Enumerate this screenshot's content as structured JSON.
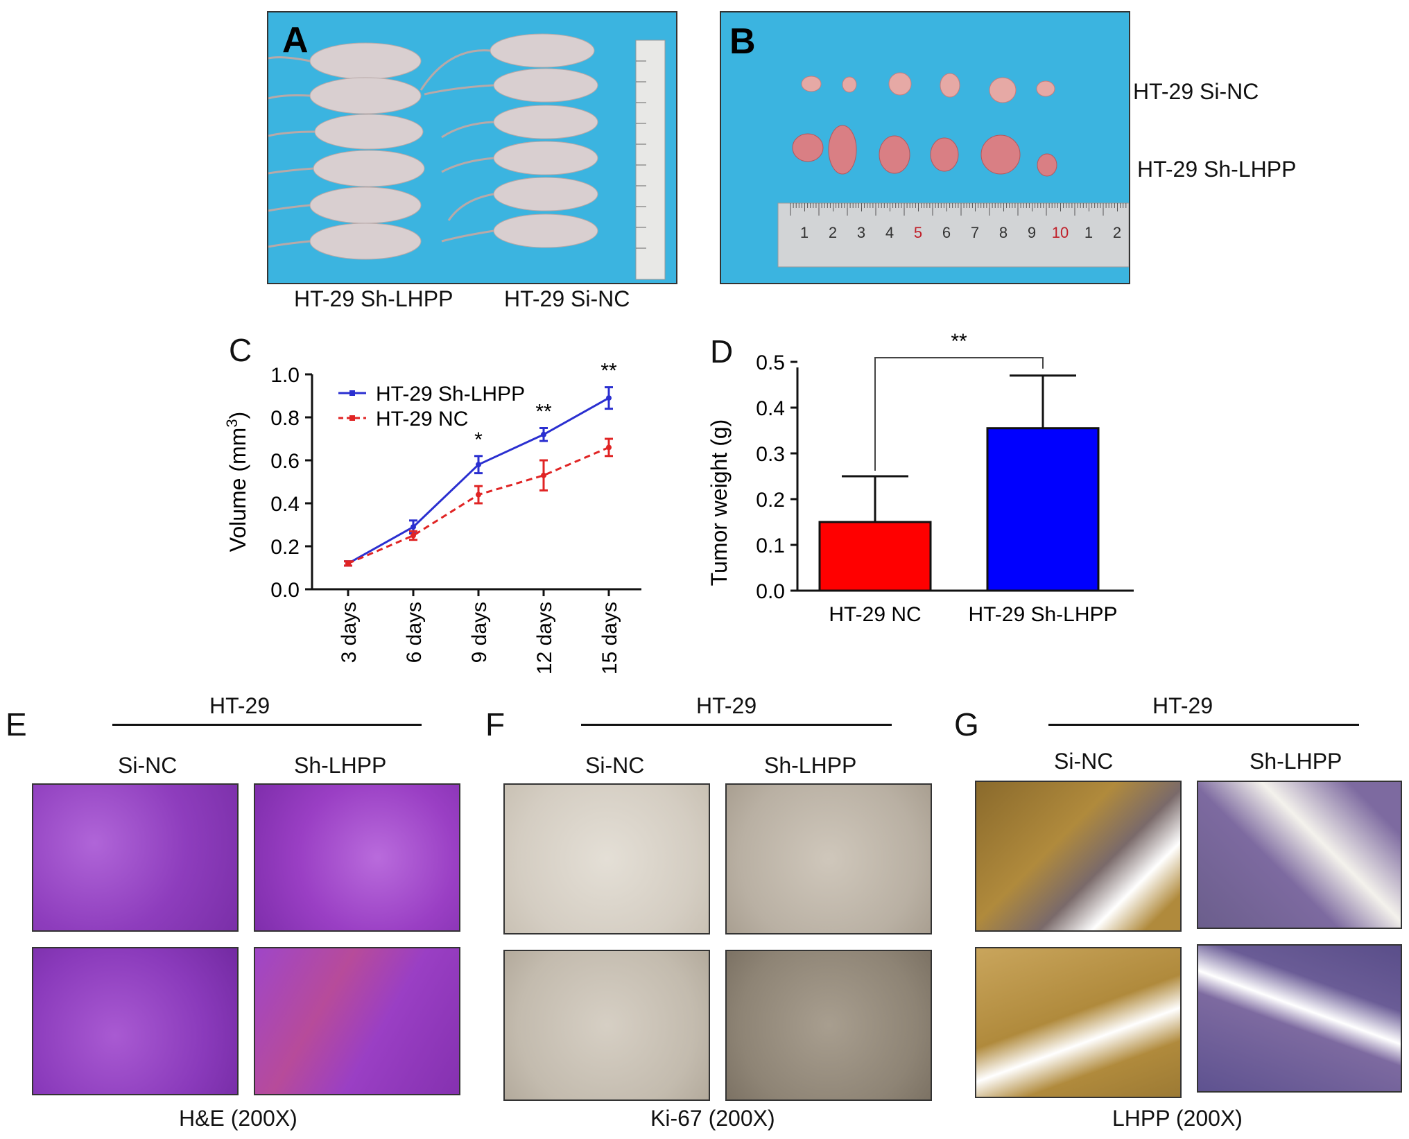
{
  "panelA": {
    "letter": "A",
    "label_left": "HT-29 Sh-LHPP",
    "label_right": "HT-29 Si-NC"
  },
  "panelB": {
    "letter": "B",
    "row1_label": "HT-29 Si-NC",
    "row2_label": "HT-29 Sh-LHPP",
    "ruler_numbers": [
      "1",
      "2",
      "3",
      "4",
      "5",
      "6",
      "7",
      "8",
      "9",
      "10",
      "1",
      "2"
    ],
    "ruler_highlight_color": "#c0202a"
  },
  "panelC": {
    "letter": "C",
    "legend": [
      "HT-29 Sh-LHPP",
      "HT-29 NC"
    ],
    "sig_marks": [
      "*",
      "**",
      "**"
    ]
  },
  "panelD": {
    "letter": "D",
    "sig_mark": "**"
  },
  "chart_data": [
    {
      "type": "line",
      "panel": "C",
      "ylabel": "Volume (mm³)",
      "ylabel_main": "Volume (mm",
      "ylabel_sup": "3",
      "ylabel_end": ")",
      "ylim": [
        0,
        1.0
      ],
      "yticks": [
        "0.0",
        "0.2",
        "0.4",
        "0.6",
        "0.8",
        "1.0"
      ],
      "categories": [
        "3 days",
        "6 days",
        "9 days",
        "12 days",
        "15 days"
      ],
      "series": [
        {
          "name": "HT-29 Sh-LHPP",
          "color": "#2a2fd0",
          "style": "solid",
          "values": [
            0.12,
            0.29,
            0.58,
            0.72,
            0.89
          ],
          "errors": [
            0.01,
            0.03,
            0.04,
            0.03,
            0.05
          ]
        },
        {
          "name": "HT-29 NC",
          "color": "#e02424",
          "style": "dashed",
          "values": [
            0.12,
            0.25,
            0.44,
            0.53,
            0.66
          ],
          "errors": [
            0.01,
            0.02,
            0.04,
            0.07,
            0.04
          ]
        }
      ],
      "annotations": [
        {
          "category": "9 days",
          "text": "*"
        },
        {
          "category": "12 days",
          "text": "**"
        },
        {
          "category": "15 days",
          "text": "**"
        }
      ]
    },
    {
      "type": "bar",
      "panel": "D",
      "ylabel": "Tumor weight (g)",
      "ylim": [
        0,
        0.5
      ],
      "yticks": [
        "0.0",
        "0.1",
        "0.2",
        "0.3",
        "0.4",
        "0.5"
      ],
      "categories": [
        "HT-29 NC",
        "HT-29 Sh-LHPP"
      ],
      "values": [
        0.15,
        0.355
      ],
      "errors": [
        0.1,
        0.115
      ],
      "colors": [
        "#ff0000",
        "#0000ff"
      ]
    }
  ],
  "panelE": {
    "letter": "E",
    "group": "HT-29",
    "col1": "Si-NC",
    "col2": "Sh-LHPP",
    "caption": "H&E (200X)",
    "tissue_color": "#9a3fc4"
  },
  "panelF": {
    "letter": "F",
    "group": "HT-29",
    "col1": "Si-NC",
    "col2": "Sh-LHPP",
    "caption": "Ki-67 (200X)",
    "tissue_color": "#d8d2c8"
  },
  "panelG": {
    "letter": "G",
    "group": "HT-29",
    "col1": "Si-NC",
    "col2": "Sh-LHPP",
    "caption": "LHPP (200X)",
    "tissue_color_sinc": "#b08a3c",
    "tissue_color_sh": "#7d6aa0"
  }
}
